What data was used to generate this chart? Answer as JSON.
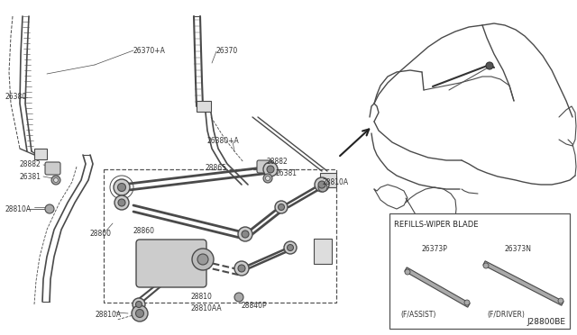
{
  "bg_color": "#ffffff",
  "line_color": "#4a4a4a",
  "text_color": "#333333",
  "labels": {
    "26370pA": "26370+A",
    "26370": "26370",
    "26380": "26380",
    "26380pA": "26380+A",
    "28882_1": "28882",
    "28882_2": "28882",
    "26381_1": "26381",
    "26381_2": "26381",
    "28810A_1": "28810A",
    "28810A_2": "28810A",
    "28810A_3": "28810AA",
    "28865": "28865",
    "28800": "28800",
    "28860": "28860",
    "28810": "28810",
    "28840P": "28840P",
    "28810AA": "28810AA",
    "26373P": "26373P",
    "26373N": "26373N",
    "f_assist": "(F/ASSIST)",
    "f_driver": "(F/DRIVER)",
    "refills": "REFILLS-WIPER BLADE",
    "j28800be": "J28800BE"
  }
}
